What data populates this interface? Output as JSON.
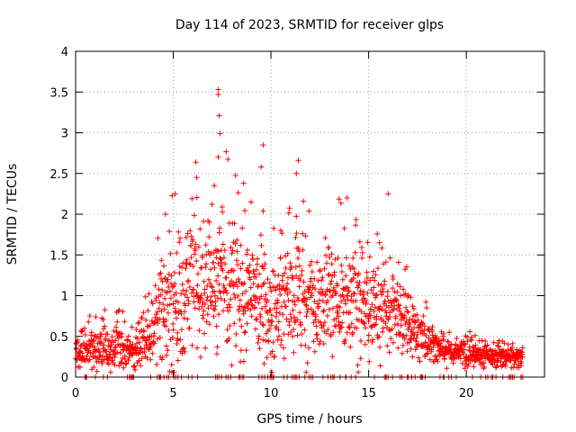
{
  "chart_data": {
    "type": "scatter",
    "title": "Day 114 of 2023, SRMTID for receiver glps",
    "xlabel": "GPS time / hours",
    "ylabel": "SRMTID / TECUs",
    "xlim": [
      0,
      24
    ],
    "ylim": [
      0,
      4
    ],
    "xticks": [
      "0",
      "5",
      "10",
      "15",
      "20"
    ],
    "yticks": [
      "0",
      "0.5",
      "1",
      "1.5",
      "2",
      "2.5",
      "3",
      "3.5",
      "4"
    ],
    "grid": true,
    "marker": "+",
    "color": "#ff0000",
    "x_end": 22.9,
    "envelope": {
      "hours": [
        0,
        1,
        2,
        3,
        4,
        5,
        6,
        7,
        8,
        9,
        10,
        11,
        12,
        13,
        14,
        15,
        16,
        17,
        18,
        19,
        20,
        21,
        22,
        23
      ],
      "typical": [
        0.3,
        0.38,
        0.4,
        0.3,
        0.65,
        0.85,
        1.1,
        1.2,
        1.15,
        1.0,
        0.75,
        1.0,
        0.9,
        1.0,
        1.05,
        0.9,
        0.85,
        0.65,
        0.45,
        0.32,
        0.28,
        0.27,
        0.22,
        0.25
      ],
      "spread": [
        0.12,
        0.15,
        0.18,
        0.12,
        0.3,
        0.5,
        0.5,
        0.55,
        0.55,
        0.45,
        0.35,
        0.5,
        0.4,
        0.4,
        0.45,
        0.4,
        0.35,
        0.25,
        0.15,
        0.1,
        0.1,
        0.1,
        0.08,
        0.08
      ]
    },
    "peaks": [
      {
        "x": 7.3,
        "y": 3.53
      },
      {
        "x": 7.3,
        "y": 3.47
      },
      {
        "x": 7.35,
        "y": 3.21
      },
      {
        "x": 7.4,
        "y": 2.99
      },
      {
        "x": 9.6,
        "y": 2.85
      },
      {
        "x": 7.3,
        "y": 2.7
      },
      {
        "x": 11.4,
        "y": 2.66
      },
      {
        "x": 9.5,
        "y": 2.58
      },
      {
        "x": 11.3,
        "y": 2.5
      },
      {
        "x": 6.2,
        "y": 2.45
      },
      {
        "x": 8.6,
        "y": 2.38
      },
      {
        "x": 7.1,
        "y": 2.35
      },
      {
        "x": 16.0,
        "y": 2.25
      },
      {
        "x": 5.1,
        "y": 2.25
      },
      {
        "x": 13.9,
        "y": 2.2
      },
      {
        "x": 9.6,
        "y": 2.04
      },
      {
        "x": 4.6,
        "y": 2.0
      },
      {
        "x": 10.5,
        "y": 1.8
      }
    ]
  }
}
